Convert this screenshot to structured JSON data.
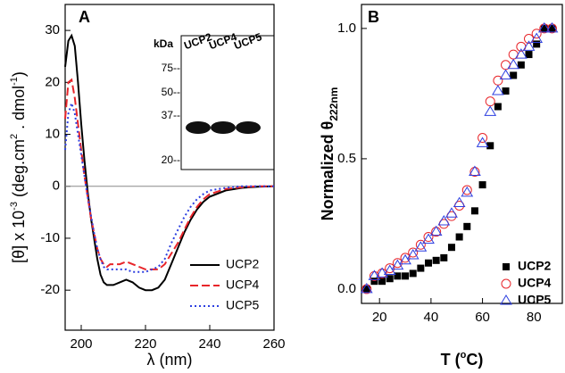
{
  "chart_data": [
    {
      "type": "line",
      "panel": "A",
      "xlabel": [
        {
          "text": "λ (nm)"
        }
      ],
      "ylabel": [
        {
          "text": "[θ] x 10"
        },
        {
          "text": "-3",
          "sup": true
        },
        {
          "text": " (deg.cm"
        },
        {
          "text": "2",
          "sup": true
        },
        {
          "text": " . dmol"
        },
        {
          "text": "-1",
          "sup": true
        },
        {
          "text": ")"
        }
      ],
      "x": [
        195,
        196,
        197,
        198,
        199,
        200,
        201,
        202,
        203,
        204,
        205,
        206,
        207,
        208,
        209,
        210,
        212,
        214,
        216,
        218,
        220,
        222,
        224,
        226,
        228,
        230,
        232,
        234,
        236,
        238,
        240,
        245,
        250,
        255,
        260
      ],
      "series": [
        {
          "name": "UCP2",
          "color": "#000000",
          "linestyle": "solid",
          "values": [
            23,
            28,
            29,
            27,
            20,
            12,
            5,
            -1,
            -6,
            -10,
            -14,
            -17,
            -18.5,
            -19,
            -19,
            -19,
            -18.5,
            -18,
            -18.5,
            -19.5,
            -20,
            -20,
            -19.5,
            -18,
            -15,
            -12,
            -9,
            -6.5,
            -4.5,
            -3,
            -2,
            -0.8,
            -0.3,
            -0.1,
            0
          ]
        },
        {
          "name": "UCP4",
          "color": "#e8252a",
          "linestyle": "dashed",
          "values": [
            13,
            20,
            20.5,
            17,
            12,
            7,
            2,
            -2,
            -6,
            -9,
            -12,
            -14,
            -15,
            -15.5,
            -15,
            -15,
            -15,
            -14.5,
            -15,
            -15.5,
            -16,
            -16,
            -16,
            -15,
            -13,
            -11,
            -8.5,
            -6,
            -4,
            -2.5,
            -1.5,
            -0.5,
            -0.2,
            0,
            0
          ]
        },
        {
          "name": "UCP5",
          "color": "#2d3fe0",
          "linestyle": "dotted",
          "values": [
            7,
            14,
            16,
            14,
            10,
            6,
            2,
            -2,
            -5.5,
            -9,
            -12,
            -14,
            -15.5,
            -16,
            -16,
            -16,
            -16,
            -16,
            -16.5,
            -16.5,
            -16.5,
            -16,
            -15.5,
            -14,
            -11,
            -8.5,
            -6,
            -4,
            -2.5,
            -1.5,
            -0.8,
            -0.3,
            0,
            0,
            0
          ]
        }
      ],
      "xlim": [
        195,
        260
      ],
      "xticks": [
        200,
        220,
        240,
        260
      ],
      "ylim": [
        -27.7,
        35
      ],
      "yticks": [
        -20,
        -10,
        0,
        10,
        20,
        30
      ],
      "hline": 0,
      "legend": "lower right",
      "inset": {
        "unit_label": "kDa",
        "lanes": [
          "UCP2",
          "UCP4",
          "UCP5"
        ],
        "markers": [
          "75--",
          "50--",
          "37--",
          "20--"
        ]
      }
    },
    {
      "type": "scatter",
      "panel": "B",
      "xlabel": [
        {
          "text": "T ("
        },
        {
          "text": "o",
          "sup": true
        },
        {
          "text": "C)"
        }
      ],
      "ylabel": [
        {
          "text": "Normalized  θ"
        },
        {
          "text": "222nm",
          "sub": true
        }
      ],
      "x": [
        15,
        18,
        21,
        24,
        27,
        30,
        33,
        36,
        39,
        42,
        45,
        48,
        51,
        54,
        57,
        60,
        63,
        66,
        69,
        72,
        75,
        78,
        81,
        84,
        87
      ],
      "series": [
        {
          "name": "UCP2",
          "color": "#000000",
          "marker": "square-filled",
          "values": [
            0.0,
            0.03,
            0.03,
            0.04,
            0.05,
            0.05,
            0.06,
            0.08,
            0.1,
            0.11,
            0.12,
            0.16,
            0.2,
            0.24,
            0.3,
            0.4,
            0.55,
            0.7,
            0.76,
            0.82,
            0.86,
            0.9,
            0.94,
            1.0,
            1.0
          ]
        },
        {
          "name": "UCP4",
          "color": "#e8252a",
          "marker": "circle-open",
          "values": [
            0.0,
            0.05,
            0.06,
            0.08,
            0.1,
            0.12,
            0.14,
            0.17,
            0.2,
            0.22,
            0.25,
            0.28,
            0.32,
            0.38,
            0.45,
            0.58,
            0.72,
            0.8,
            0.86,
            0.9,
            0.93,
            0.96,
            0.98,
            1.0,
            1.0
          ]
        },
        {
          "name": "UCP5",
          "color": "#2d3fe0",
          "marker": "triangle-open",
          "values": [
            0.0,
            0.05,
            0.06,
            0.07,
            0.09,
            0.11,
            0.13,
            0.16,
            0.19,
            0.22,
            0.26,
            0.29,
            0.33,
            0.37,
            0.45,
            0.56,
            0.68,
            0.76,
            0.82,
            0.86,
            0.9,
            0.93,
            0.96,
            1.0,
            1.0
          ]
        }
      ],
      "xlim": [
        13,
        91
      ],
      "xticks": [
        20,
        40,
        60,
        80
      ],
      "ylim": [
        -0.055,
        1.092
      ],
      "yticks": [
        {
          "value": 0,
          "label": "0.0"
        },
        {
          "value": 0.5,
          "label": "0.5"
        },
        {
          "value": 1,
          "label": "1.0"
        }
      ],
      "legend": "lower right"
    }
  ]
}
